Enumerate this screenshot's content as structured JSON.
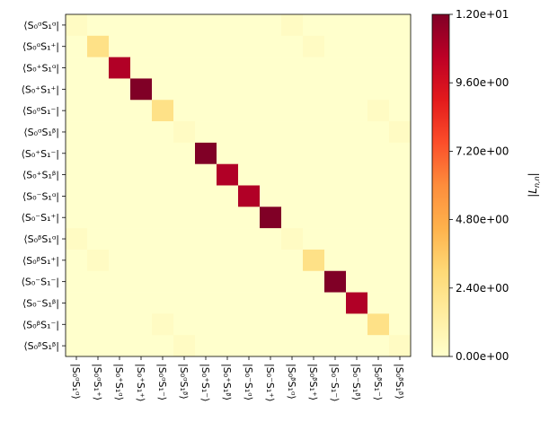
{
  "chart_data": {
    "type": "heatmap",
    "title": "",
    "row_labels": [
      "⟨S₀ᵅS₁ᵅ|",
      "⟨S₀ᵅS₁⁺|",
      "⟨S₀⁺S₁ᵅ|",
      "⟨S₀⁺S₁⁺|",
      "⟨S₀ᵅS₁⁻|",
      "⟨S₀ᵅS₁ᵝ|",
      "⟨S₀⁺S₁⁻|",
      "⟨S₀⁺S₁ᵝ|",
      "⟨S₀⁻S₁ᵅ|",
      "⟨S₀⁻S₁⁺|",
      "⟨S₀ᵝS₁ᵅ|",
      "⟨S₀ᵝS₁⁺|",
      "⟨S₀⁻S₁⁻|",
      "⟨S₀⁻S₁ᵝ|",
      "⟨S₀ᵝS₁⁻|",
      "⟨S₀ᵝS₁ᵝ|"
    ],
    "col_labels": [
      "|S₀ᵅS₁ᵅ⟩",
      "|S₀ᵅS₁⁺⟩",
      "|S₀⁺S₁ᵅ⟩",
      "|S₀⁺S₁⁺⟩",
      "|S₀ᵅS₁⁻⟩",
      "|S₀ᵅS₁ᵝ⟩",
      "|S₀⁺S₁⁻⟩",
      "|S₀⁺S₁ᵝ⟩",
      "|S₀⁻S₁ᵅ⟩",
      "|S₀⁻S₁⁺⟩",
      "|S₀ᵝS₁ᵅ⟩",
      "|S₀ᵝS₁⁺⟩",
      "|S₀⁻S₁⁻⟩",
      "|S₀⁻S₁ᵝ⟩",
      "|S₀ᵝS₁⁻⟩",
      "|S₀ᵝS₁ᵝ⟩"
    ],
    "values": [
      [
        0.3,
        0,
        0,
        0,
        0,
        0,
        0,
        0,
        0,
        0,
        0.3,
        0,
        0,
        0,
        0,
        0
      ],
      [
        0,
        2.4,
        0,
        0,
        0,
        0,
        0,
        0,
        0,
        0,
        0,
        0.3,
        0,
        0,
        0,
        0
      ],
      [
        0,
        0,
        10.8,
        0,
        0,
        0,
        0,
        0,
        0,
        0,
        0,
        0,
        0,
        0,
        0,
        0
      ],
      [
        0,
        0,
        0,
        12.0,
        0,
        0,
        0,
        0,
        0,
        0,
        0,
        0,
        0,
        0,
        0,
        0
      ],
      [
        0,
        0,
        0,
        0,
        2.4,
        0,
        0,
        0,
        0,
        0,
        0,
        0,
        0,
        0,
        0.3,
        0
      ],
      [
        0,
        0,
        0,
        0,
        0,
        0.3,
        0,
        0,
        0,
        0,
        0,
        0,
        0,
        0,
        0,
        0.3
      ],
      [
        0,
        0,
        0,
        0,
        0,
        0,
        12.0,
        0,
        0,
        0,
        0,
        0,
        0,
        0,
        0,
        0
      ],
      [
        0,
        0,
        0,
        0,
        0,
        0,
        0,
        10.8,
        0,
        0,
        0,
        0,
        0,
        0,
        0,
        0
      ],
      [
        0,
        0,
        0,
        0,
        0,
        0,
        0,
        0,
        10.8,
        0,
        0,
        0,
        0,
        0,
        0,
        0
      ],
      [
        0,
        0,
        0,
        0,
        0,
        0,
        0,
        0,
        0,
        12.0,
        0,
        0,
        0,
        0,
        0,
        0
      ],
      [
        0.3,
        0,
        0,
        0,
        0,
        0,
        0,
        0,
        0,
        0,
        0.3,
        0,
        0,
        0,
        0,
        0
      ],
      [
        0,
        0.3,
        0,
        0,
        0,
        0,
        0,
        0,
        0,
        0,
        0,
        2.4,
        0,
        0,
        0,
        0
      ],
      [
        0,
        0,
        0,
        0,
        0,
        0,
        0,
        0,
        0,
        0,
        0,
        0,
        12.0,
        0,
        0,
        0
      ],
      [
        0,
        0,
        0,
        0,
        0,
        0,
        0,
        0,
        0,
        0,
        0,
        0,
        0,
        10.8,
        0,
        0
      ],
      [
        0,
        0,
        0,
        0,
        0.3,
        0,
        0,
        0,
        0,
        0,
        0,
        0,
        0,
        0,
        2.4,
        0
      ],
      [
        0,
        0,
        0,
        0,
        0,
        0.3,
        0,
        0,
        0,
        0,
        0,
        0,
        0,
        0,
        0,
        0.3
      ]
    ],
    "colorbar": {
      "label": "|L_{n,n}|",
      "label_main": "|L",
      "label_sub": "n,n",
      "label_end": "|",
      "min": 0,
      "max": 12,
      "ticks": [
        0,
        2.4,
        4.8,
        7.2,
        9.6,
        12
      ],
      "tick_labels": [
        "0.00e+00",
        "2.40e+00",
        "4.80e+00",
        "7.20e+00",
        "9.60e+00",
        "1.20e+01"
      ],
      "colormap": "YlOrRd"
    },
    "grid": false
  },
  "colors": {
    "cmap_stops": [
      "#ffffcc",
      "#ffeda0",
      "#fed976",
      "#feb24c",
      "#fd8d3c",
      "#fc4e2a",
      "#e31a1c",
      "#bd0026",
      "#800026"
    ]
  }
}
